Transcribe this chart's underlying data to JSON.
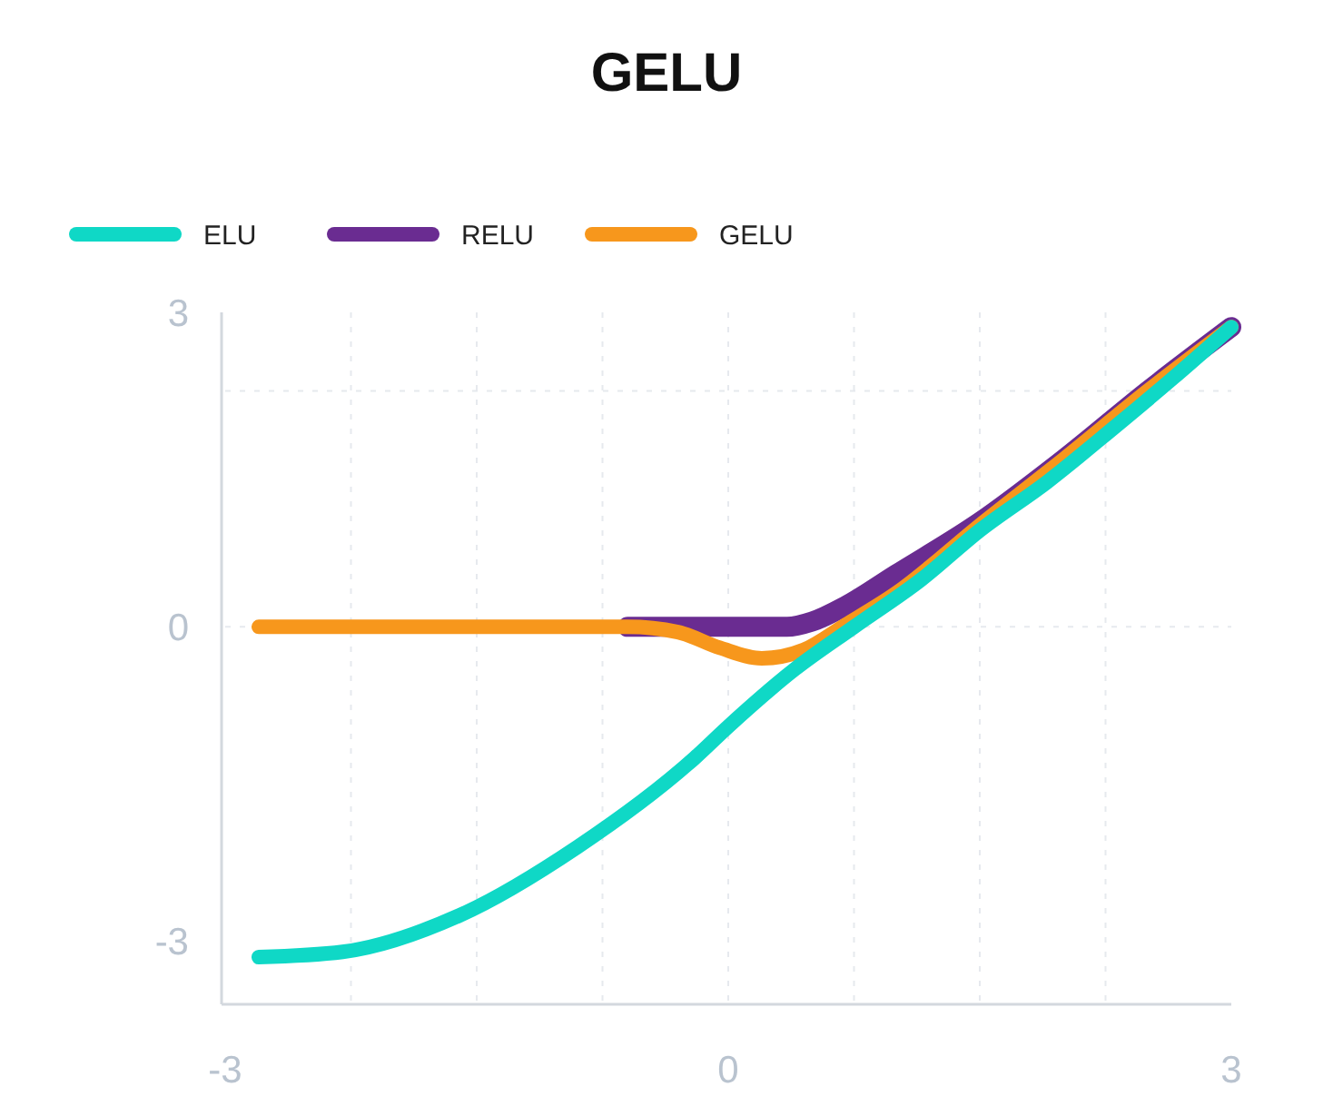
{
  "chart_data": {
    "type": "line",
    "title": "GELU",
    "legend": "top left",
    "grid": true,
    "line_style": "solid",
    "marker": "none",
    "xlim": [
      -3,
      3
    ],
    "ylim": [
      -3.6,
      3
    ],
    "xticks": [
      -3,
      {
        "value": -2.25,
        "label": null
      },
      {
        "value": -1.5,
        "label": null
      },
      {
        "value": -0.75,
        "label": null
      },
      0,
      {
        "value": 0.75,
        "label": null
      },
      {
        "value": 1.5,
        "label": null
      },
      {
        "value": 2.25,
        "label": null
      },
      3
    ],
    "yticks": [
      -3,
      0,
      {
        "value": 2.25,
        "label": null
      },
      3
    ],
    "series": [
      {
        "name": "ELU",
        "color": "#0fd8c6",
        "x": [
          -2.8,
          -2.3,
          -1.6,
          -0.9,
          -0.2,
          0,
          0.4,
          0.75,
          1.15,
          1.5,
          1.9,
          2.3,
          2.65,
          3
        ],
        "values": [
          -3.15,
          -3.1,
          -2.75,
          -2.1,
          -1.25,
          -0.95,
          -0.4,
          0,
          0.45,
          0.92,
          1.38,
          1.9,
          2.37,
          2.86
        ]
      },
      {
        "name": "RELU",
        "color": "#6a2c91",
        "x": [
          -0.6,
          0,
          0.35,
          0.5,
          0.7,
          1,
          1.5,
          2,
          2.5,
          3
        ],
        "values": [
          0,
          0,
          0,
          0.05,
          0.2,
          0.5,
          1,
          1.6,
          2.25,
          2.86
        ]
      },
      {
        "name": "GELU",
        "color": "#f7971c",
        "x": [
          -2.8,
          -0.6,
          -0.3,
          -0.05,
          0.2,
          0.45,
          0.7,
          1,
          1.5,
          2,
          2.5,
          3
        ],
        "values": [
          0,
          0,
          -0.05,
          -0.2,
          -0.3,
          -0.22,
          0.02,
          0.32,
          0.97,
          1.6,
          2.25,
          2.86
        ]
      }
    ]
  }
}
